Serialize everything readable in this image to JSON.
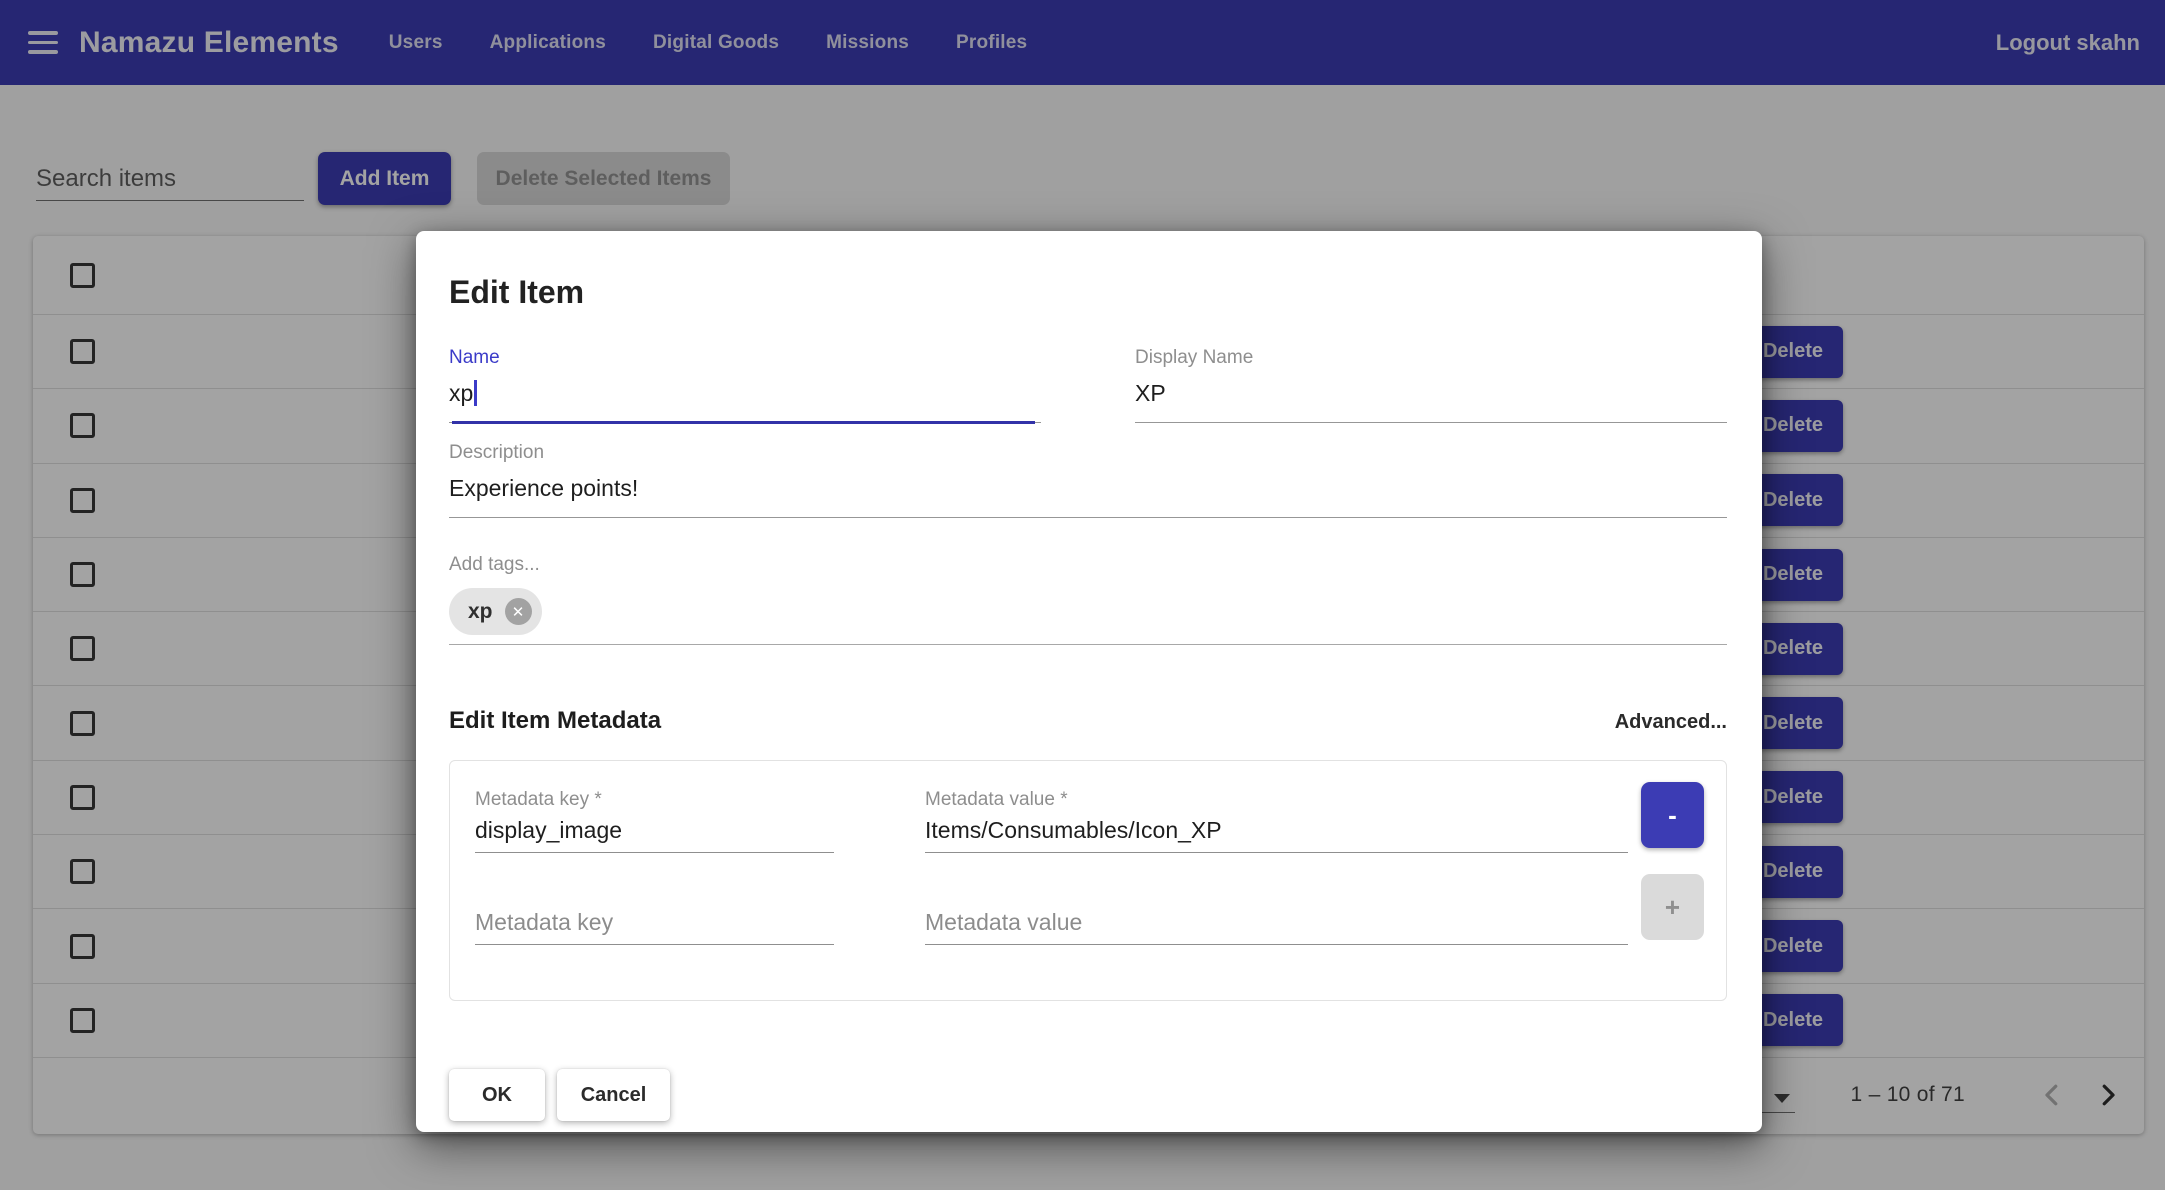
{
  "theme": {
    "primary_color": "#3c3cb4",
    "backdrop_color": "rgba(0,0,0,0.36)"
  },
  "navbar": {
    "title": "Namazu Elements",
    "items": [
      {
        "label": "Users"
      },
      {
        "label": "Applications"
      },
      {
        "label": "Digital Goods"
      },
      {
        "label": "Missions"
      },
      {
        "label": "Profiles"
      }
    ],
    "logout_label": "Logout skahn"
  },
  "toolbar": {
    "search_placeholder": "Search items",
    "add_item_label": "Add Item",
    "delete_selected_label": "Delete Selected Items"
  },
  "table": {
    "rows": [
      {
        "delete_label": "Delete"
      },
      {
        "delete_label": "Delete"
      },
      {
        "delete_label": "Delete"
      },
      {
        "delete_label": "Delete"
      },
      {
        "delete_label": "Delete"
      },
      {
        "delete_label": "Delete"
      },
      {
        "delete_label": "Delete"
      },
      {
        "delete_label": "Delete"
      },
      {
        "delete_label": "Delete"
      },
      {
        "delete_label": "Delete"
      }
    ]
  },
  "pagination": {
    "range_label": "1 – 10 of 71"
  },
  "modal": {
    "title": "Edit Item",
    "fields": {
      "name": {
        "label": "Name",
        "value": "xp"
      },
      "display_name": {
        "label": "Display Name",
        "value": "XP"
      },
      "description": {
        "label": "Description",
        "value": "Experience points!"
      }
    },
    "tags": {
      "label": "Add tags...",
      "chips": [
        {
          "text": "xp"
        }
      ]
    },
    "metadata": {
      "heading": "Edit Item Metadata",
      "advanced_label": "Advanced...",
      "rows": [
        {
          "key_label": "Metadata key *",
          "key_value": "display_image",
          "value_label": "Metadata value *",
          "value_value": "Items/Consumables/Icon_XP",
          "action_glyph": "-"
        },
        {
          "key_placeholder": "Metadata key",
          "value_placeholder": "Metadata value",
          "action_glyph": "+"
        }
      ]
    },
    "ok_label": "OK",
    "cancel_label": "Cancel"
  },
  "icons": {
    "chip_remove_glyph": "✕"
  }
}
